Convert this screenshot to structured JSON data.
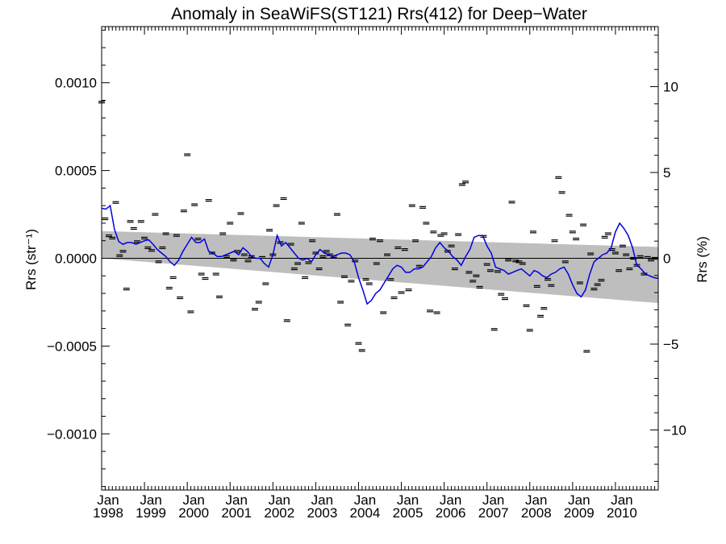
{
  "chart_data": {
    "type": "line",
    "title": "Anomaly in SeaWiFS(ST121) Rrs(412) for Deep−Water",
    "ylabel_left": "Rrs (str⁻¹)",
    "ylabel_right": "Rrs (%)",
    "ylim_left": [
      -0.00132,
      0.00132
    ],
    "ylim_right": [
      -13.5,
      13.5
    ],
    "xlim": [
      1998.0,
      2011.0
    ],
    "y_ticks_left": [
      {
        "value": 0.001,
        "label": "0.0010"
      },
      {
        "value": 0.0005,
        "label": "0.0005"
      },
      {
        "value": 0.0,
        "label": "0.0000"
      },
      {
        "value": -0.0005,
        "label": "−0.0005"
      },
      {
        "value": -0.001,
        "label": "−0.0010"
      }
    ],
    "y_ticks_right": [
      {
        "value": 10,
        "label": "10"
      },
      {
        "value": 5,
        "label": "5"
      },
      {
        "value": 0,
        "label": "0"
      },
      {
        "value": -5,
        "label": "−5"
      },
      {
        "value": -10,
        "label": "−10"
      }
    ],
    "x_ticks": [
      {
        "value": 1998,
        "month": "Jan",
        "year": "1998"
      },
      {
        "value": 1999,
        "month": "Jan",
        "year": "1999"
      },
      {
        "value": 2000,
        "month": "Jan",
        "year": "2000"
      },
      {
        "value": 2001,
        "month": "Jan",
        "year": "2001"
      },
      {
        "value": 2002,
        "month": "Jan",
        "year": "2002"
      },
      {
        "value": 2003,
        "month": "Jan",
        "year": "2003"
      },
      {
        "value": 2004,
        "month": "Jan",
        "year": "2004"
      },
      {
        "value": 2005,
        "month": "Jan",
        "year": "2005"
      },
      {
        "value": 2006,
        "month": "Jan",
        "year": "2006"
      },
      {
        "value": 2007,
        "month": "Jan",
        "year": "2007"
      },
      {
        "value": 2008,
        "month": "Jan",
        "year": "2008"
      },
      {
        "value": 2009,
        "month": "Jan",
        "year": "2009"
      },
      {
        "value": 2010,
        "month": "Jan",
        "year": "2010"
      }
    ],
    "zero_line": 0.0,
    "band": {
      "color": "#bebebe",
      "x": [
        1998.0,
        2011.0
      ],
      "upper": [
        0.000155,
        6.5e-05
      ],
      "lower": [
        0.0,
        -0.000255
      ]
    },
    "series": [
      {
        "kind": "markers",
        "color": "#000000",
        "x": [
          1998.0,
          1998.08,
          1998.17,
          1998.25,
          1998.33,
          1998.42,
          1998.5,
          1998.58,
          1998.67,
          1998.75,
          1998.83,
          1998.92,
          1999.0,
          1999.08,
          1999.17,
          1999.25,
          1999.33,
          1999.42,
          1999.5,
          1999.58,
          1999.67,
          1999.75,
          1999.83,
          1999.92,
          2000.0,
          2000.08,
          2000.17,
          2000.25,
          2000.33,
          2000.42,
          2000.5,
          2000.58,
          2000.67,
          2000.75,
          2000.83,
          2000.92,
          2001.0,
          2001.08,
          2001.17,
          2001.25,
          2001.33,
          2001.42,
          2001.5,
          2001.58,
          2001.67,
          2001.75,
          2001.83,
          2001.92,
          2002.0,
          2002.08,
          2002.17,
          2002.25,
          2002.33,
          2002.42,
          2002.5,
          2002.58,
          2002.67,
          2002.75,
          2002.83,
          2002.92,
          2003.0,
          2003.08,
          2003.17,
          2003.25,
          2003.33,
          2003.42,
          2003.5,
          2003.58,
          2003.67,
          2003.75,
          2003.83,
          2003.92,
          2004.0,
          2004.08,
          2004.17,
          2004.25,
          2004.33,
          2004.42,
          2004.5,
          2004.58,
          2004.67,
          2004.75,
          2004.83,
          2004.92,
          2005.0,
          2005.08,
          2005.17,
          2005.25,
          2005.33,
          2005.42,
          2005.5,
          2005.58,
          2005.67,
          2005.75,
          2005.83,
          2005.92,
          2006.0,
          2006.08,
          2006.17,
          2006.25,
          2006.33,
          2006.42,
          2006.5,
          2006.58,
          2006.67,
          2006.75,
          2006.83,
          2006.92,
          2007.0,
          2007.08,
          2007.17,
          2007.25,
          2007.33,
          2007.42,
          2007.5,
          2007.58,
          2007.67,
          2007.75,
          2007.83,
          2007.92,
          2008.0,
          2008.08,
          2008.17,
          2008.25,
          2008.33,
          2008.42,
          2008.5,
          2008.58,
          2008.67,
          2008.75,
          2008.83,
          2008.92,
          2009.0,
          2009.08,
          2009.17,
          2009.25,
          2009.33,
          2009.42,
          2009.5,
          2009.58,
          2009.67,
          2009.75,
          2009.83,
          2009.92,
          2010.0,
          2010.08,
          2010.17,
          2010.25,
          2010.33,
          2010.42,
          2010.5,
          2010.58,
          2010.67,
          2010.75,
          2010.83,
          2010.92
        ],
        "y": [
          0.00089,
          0.000225,
          0.000128,
          0.000115,
          0.000318,
          1.5e-05,
          4e-05,
          -0.000175,
          0.00021,
          0.00017,
          9.5e-05,
          0.00021,
          0.000115,
          6e-05,
          4.5e-05,
          0.00025,
          -2e-05,
          6e-05,
          0.00014,
          -0.00017,
          -0.00011,
          0.00013,
          -0.000225,
          0.00027,
          0.00059,
          -0.000305,
          0.000305,
          0.00011,
          -9e-05,
          -0.000115,
          0.00033,
          3e-05,
          -9e-05,
          -0.00022,
          0.00014,
          1e-05,
          0.0002,
          -1e-05,
          4e-05,
          0.000255,
          2e-05,
          -1.5e-05,
          1e-05,
          -0.00029,
          -0.00025,
          5e-06,
          -0.000145,
          0.00016,
          2e-05,
          0.0003,
          9e-05,
          0.00034,
          -0.000355,
          8e-05,
          -6e-05,
          -3e-05,
          0.0002,
          -0.00011,
          -2.5e-05,
          0.0001,
          3e-05,
          -6e-05,
          1e-05,
          4e-05,
          2e-05,
          1e-05,
          0.00025,
          -0.00025,
          -0.000105,
          -0.00038,
          -0.00013,
          -1.5e-05,
          -0.000485,
          -0.000525,
          -0.00012,
          -0.000145,
          0.00011,
          -3e-05,
          0.0001,
          -0.00031,
          2e-05,
          -0.00012,
          -0.000225,
          6e-05,
          -0.000195,
          5e-05,
          -0.00018,
          0.0003,
          0.0001,
          -4.5e-05,
          0.00029,
          0.0002,
          -0.0003,
          0.00015,
          -0.00031,
          0.00013,
          0.00014,
          4e-05,
          7e-05,
          -6e-05,
          0.000135,
          0.00042,
          0.000435,
          -8e-05,
          -0.00013,
          -0.0001,
          -0.000165,
          0.000125,
          -3.5e-05,
          -7e-05,
          -0.000405,
          -7.5e-05,
          -0.000205,
          -0.00023,
          -1e-05,
          0.00032,
          -1.5e-05,
          -2e-05,
          -3e-05,
          -0.00027,
          -0.00041,
          0.00015,
          -0.00016,
          -0.00033,
          -0.000285,
          -0.00012,
          -0.000155,
          0.0001,
          0.00046,
          0.000375,
          -2e-05,
          0.000245,
          0.00015,
          0.00011,
          -0.00014,
          0.00019,
          -0.00053,
          2.5e-05,
          -0.000175,
          -0.00015,
          -0.000125,
          0.00012,
          0.00014,
          5e-05,
          3e-05,
          -7e-05,
          7e-05,
          2e-05,
          -6e-05,
          0.0,
          -4e-05,
          1e-05,
          -9e-05,
          5e-06,
          -1e-05,
          0.0
        ]
      },
      {
        "kind": "line",
        "color": "#0000e0",
        "x": [
          1998.0,
          1998.1,
          1998.2,
          1998.3,
          1998.4,
          1998.5,
          1998.6,
          1998.7,
          1998.8,
          1998.9,
          1999.0,
          1999.1,
          1999.2,
          1999.3,
          1999.4,
          1999.5,
          1999.6,
          1999.7,
          1999.8,
          1999.9,
          2000.0,
          2000.1,
          2000.2,
          2000.3,
          2000.4,
          2000.5,
          2000.6,
          2000.7,
          2000.8,
          2000.9,
          2001.0,
          2001.1,
          2001.2,
          2001.3,
          2001.4,
          2001.5,
          2001.6,
          2001.7,
          2001.8,
          2001.9,
          2002.0,
          2002.1,
          2002.2,
          2002.3,
          2002.4,
          2002.5,
          2002.6,
          2002.7,
          2002.8,
          2002.9,
          2003.0,
          2003.1,
          2003.2,
          2003.3,
          2003.4,
          2003.5,
          2003.6,
          2003.7,
          2003.8,
          2003.9,
          2004.0,
          2004.1,
          2004.2,
          2004.3,
          2004.4,
          2004.5,
          2004.6,
          2004.7,
          2004.8,
          2004.9,
          2005.0,
          2005.1,
          2005.2,
          2005.3,
          2005.4,
          2005.5,
          2005.6,
          2005.7,
          2005.8,
          2005.9,
          2006.0,
          2006.1,
          2006.2,
          2006.3,
          2006.4,
          2006.5,
          2006.6,
          2006.7,
          2006.8,
          2006.9,
          2007.0,
          2007.1,
          2007.2,
          2007.3,
          2007.4,
          2007.5,
          2007.6,
          2007.7,
          2007.8,
          2007.9,
          2008.0,
          2008.1,
          2008.2,
          2008.3,
          2008.4,
          2008.5,
          2008.6,
          2008.7,
          2008.8,
          2008.9,
          2009.0,
          2009.1,
          2009.2,
          2009.3,
          2009.4,
          2009.5,
          2009.6,
          2009.7,
          2009.8,
          2009.9,
          2010.0,
          2010.1,
          2010.2,
          2010.3,
          2010.4,
          2010.5,
          2010.6,
          2010.7,
          2010.8,
          2010.9,
          2011.0
        ],
        "y": [
          0.000285,
          0.00028,
          0.0003,
          0.000165,
          9.5e-05,
          8e-05,
          9e-05,
          9e-05,
          8e-05,
          9e-05,
          0.0001,
          0.000105,
          8e-05,
          5e-05,
          3e-05,
          1e-05,
          -2e-05,
          -4e-05,
          -1e-05,
          4e-05,
          8e-05,
          0.00012,
          9e-05,
          9e-05,
          0.00011,
          4e-05,
          3e-05,
          1e-05,
          1e-05,
          2e-05,
          3e-05,
          4e-05,
          2e-05,
          6e-05,
          4e-05,
          1e-05,
          0.0,
          0.0,
          -3e-05,
          -5e-05,
          2e-05,
          0.00013,
          7e-05,
          9e-05,
          6e-05,
          3e-05,
          0.0,
          -1e-05,
          0.0,
          -2e-05,
          2e-05,
          5e-05,
          3e-05,
          2e-05,
          1e-05,
          2e-05,
          3e-05,
          3e-05,
          2e-05,
          -2e-05,
          -0.00011,
          -0.00018,
          -0.00026,
          -0.00024,
          -0.0002,
          -0.00018,
          -0.00014,
          -0.0001,
          -6e-05,
          -4e-05,
          -5e-05,
          -8e-05,
          -8e-05,
          -6e-05,
          -6e-05,
          -5e-05,
          -2e-05,
          1e-05,
          6e-05,
          9e-05,
          6e-05,
          4e-05,
          1e-05,
          -1e-05,
          -4e-05,
          1e-05,
          5e-05,
          0.00012,
          0.00013,
          0.00013,
          7e-05,
          3e-05,
          -5e-05,
          -6e-05,
          -7e-05,
          -9e-05,
          -8e-05,
          -7e-05,
          -6e-05,
          -8e-05,
          -0.0001,
          -7e-05,
          -8e-05,
          -0.0001,
          -0.00011,
          -9e-05,
          -8e-05,
          -6e-05,
          -5e-05,
          -9e-05,
          -0.00015,
          -0.0002,
          -0.00022,
          -0.00018,
          -9e-05,
          -2e-05,
          0.0,
          2e-05,
          3e-05,
          6e-05,
          0.00015,
          0.0002,
          0.00017,
          0.00013,
          6e-05,
          -4e-05,
          -6e-05,
          -9e-05,
          -0.0001,
          -0.00011,
          -0.000115
        ]
      }
    ]
  }
}
